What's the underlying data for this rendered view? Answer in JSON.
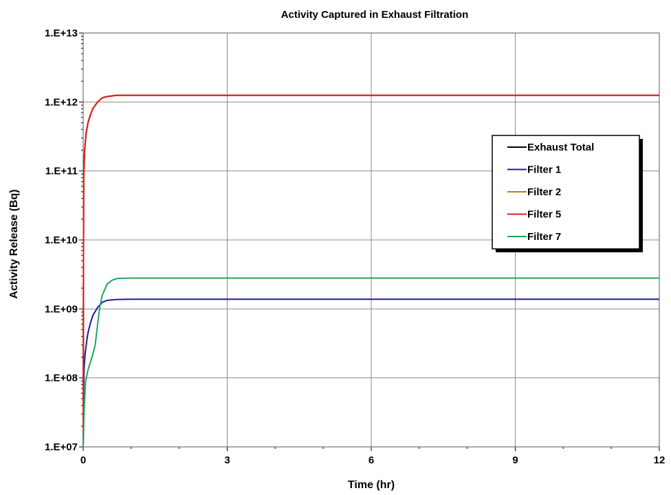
{
  "chart_data": {
    "type": "line",
    "title": "Activity Captured in Exhaust Filtration",
    "xlabel": "Time (hr)",
    "ylabel": "Activity Release (Bq)",
    "xlim": [
      0,
      12
    ],
    "ylim": [
      10000000,
      10000000000000
    ],
    "y_scale": "log",
    "grid": true,
    "legend_position": "right",
    "x_ticks": [
      0,
      3,
      6,
      9,
      12
    ],
    "x_tick_labels": [
      "0",
      "3",
      "6",
      "9",
      "12"
    ],
    "y_ticks": [
      10000000,
      100000000,
      1000000000,
      10000000000,
      100000000000,
      1000000000000,
      10000000000000
    ],
    "y_tick_labels": [
      "1.E+07",
      "1.E+08",
      "1.E+09",
      "1.E+10",
      "1.E+11",
      "1.E+12",
      "1.E+13"
    ],
    "series": [
      {
        "name": "Exhaust Total",
        "color": "#000000",
        "x": [
          0,
          0.01,
          0.03,
          0.06,
          0.1,
          0.15,
          0.2,
          0.3,
          0.4,
          0.5,
          0.7,
          1,
          12
        ],
        "y": [
          10000000,
          80000000000,
          200000000000,
          350000000000,
          500000000000,
          650000000000,
          800000000000,
          1000000000000,
          1150000000000,
          1200000000000,
          1250000000000,
          1250000000000,
          1250000000000
        ]
      },
      {
        "name": "Filter 1",
        "color": "#1a1aa6",
        "x": [
          0,
          0.01,
          0.02,
          0.04,
          0.07,
          0.1,
          0.15,
          0.2,
          0.3,
          0.4,
          0.5,
          0.7,
          1,
          12
        ],
        "y": [
          10000000,
          70000000,
          140000000,
          220000000,
          330000000,
          450000000,
          620000000,
          800000000,
          1050000000,
          1250000000,
          1330000000,
          1370000000,
          1380000000,
          1380000000
        ]
      },
      {
        "name": "Filter 2",
        "color": "#b8860b",
        "x": [
          0,
          0.01,
          0.03,
          0.06,
          0.1,
          0.15,
          0.2,
          0.3,
          0.4,
          0.5,
          0.7,
          1,
          12
        ],
        "y": [
          10000000,
          80000000000,
          200000000000,
          350000000000,
          500000000000,
          650000000000,
          800000000000,
          1000000000000,
          1150000000000,
          1200000000000,
          1250000000000,
          1250000000000,
          1250000000000
        ]
      },
      {
        "name": "Filter 5",
        "color": "#e8171c",
        "x": [
          0,
          0.01,
          0.03,
          0.06,
          0.1,
          0.15,
          0.2,
          0.3,
          0.4,
          0.5,
          0.7,
          1,
          12
        ],
        "y": [
          10000000,
          80000000000,
          200000000000,
          350000000000,
          500000000000,
          650000000000,
          800000000000,
          1000000000000,
          1150000000000,
          1200000000000,
          1250000000000,
          1250000000000,
          1250000000000
        ]
      },
      {
        "name": "Filter 7",
        "color": "#1fa55a",
        "x": [
          0,
          0.02,
          0.05,
          0.1,
          0.15,
          0.2,
          0.25,
          0.3,
          0.35,
          0.4,
          0.5,
          0.6,
          0.7,
          0.8,
          1,
          12
        ],
        "y": [
          10000000,
          35000000,
          90000000,
          130000000,
          170000000,
          220000000,
          300000000,
          600000000,
          1100000000,
          1600000000,
          2300000000,
          2600000000,
          2750000000,
          2780000000,
          2800000000,
          2800000000
        ]
      }
    ]
  }
}
